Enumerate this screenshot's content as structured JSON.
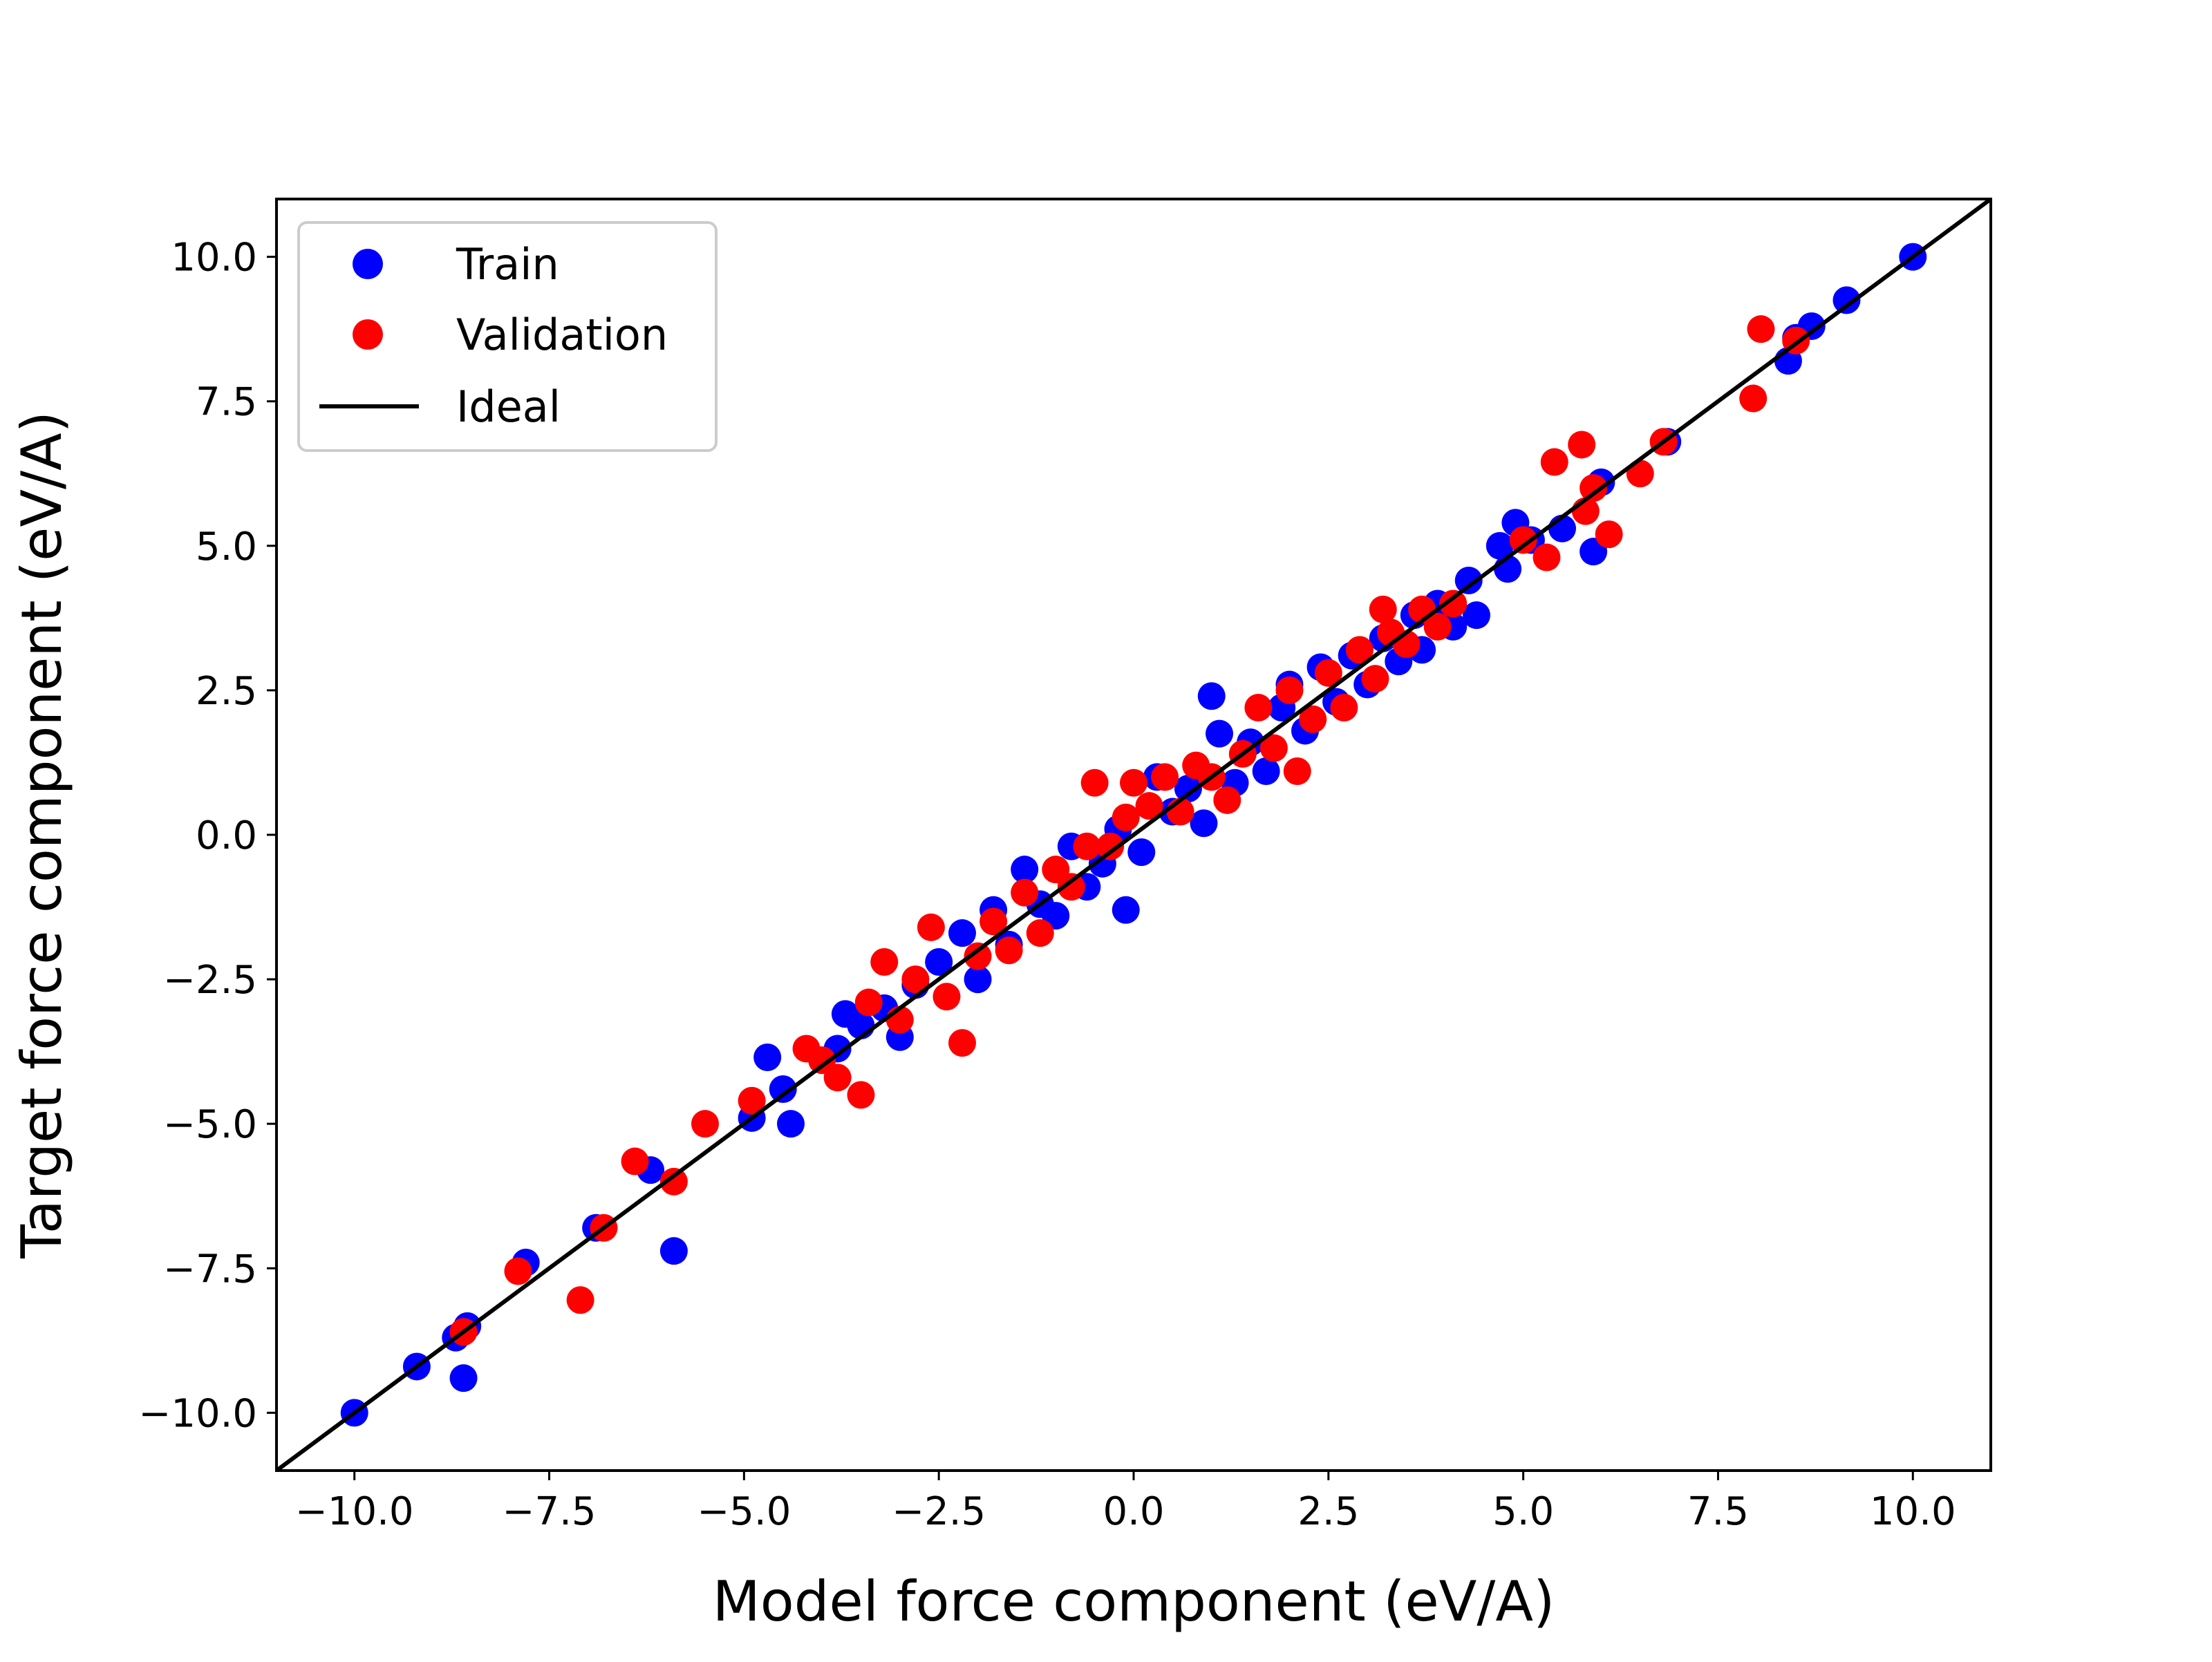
{
  "colors": {
    "train": "#0000ff",
    "validation": "#ff0000",
    "ideal": "#000000",
    "frame": "#000000",
    "legend_border": "#cccccc",
    "background": "#ffffff"
  },
  "chart_data": {
    "type": "scatter",
    "title": "",
    "xlabel": "Model force component (eV/A)",
    "ylabel": "Target force component (eV/A)",
    "xlim": [
      -11,
      11
    ],
    "ylim": [
      -11,
      11
    ],
    "xticks": [
      -10,
      -7.5,
      -5,
      -2.5,
      0,
      2.5,
      5,
      7.5,
      10
    ],
    "yticks": [
      -10,
      -7.5,
      -5,
      -2.5,
      0,
      2.5,
      5,
      7.5,
      10
    ],
    "xtick_labels": [
      "−10.0",
      "−7.5",
      "−5.0",
      "−2.5",
      "0.0",
      "2.5",
      "5.0",
      "7.5",
      "10.0"
    ],
    "ytick_labels": [
      "−10.0",
      "−7.5",
      "−5.0",
      "−2.5",
      "0.0",
      "2.5",
      "5.0",
      "7.5",
      "10.0"
    ],
    "grid": false,
    "legend_position": "top-left",
    "legend": [
      "Train",
      "Validation",
      "Ideal"
    ],
    "series": [
      {
        "name": "Train",
        "color": "#0000ff",
        "points": [
          [
            -10.0,
            -10.0
          ],
          [
            -9.2,
            -9.2
          ],
          [
            -8.7,
            -8.7
          ],
          [
            -8.55,
            -8.5
          ],
          [
            -8.6,
            -9.4
          ],
          [
            -7.8,
            -7.4
          ],
          [
            -6.9,
            -6.8
          ],
          [
            -6.2,
            -5.8
          ],
          [
            -5.9,
            -7.2
          ],
          [
            -4.7,
            -3.85
          ],
          [
            -4.9,
            -4.9
          ],
          [
            -4.4,
            -5.0
          ],
          [
            -4.5,
            -4.4
          ],
          [
            -3.8,
            -3.7
          ],
          [
            -3.7,
            -3.1
          ],
          [
            -3.5,
            -3.3
          ],
          [
            -3.2,
            -3.0
          ],
          [
            -3.0,
            -3.5
          ],
          [
            -2.8,
            -2.6
          ],
          [
            -2.5,
            -2.2
          ],
          [
            -2.2,
            -1.7
          ],
          [
            -2.0,
            -2.5
          ],
          [
            -1.8,
            -1.3
          ],
          [
            -1.6,
            -1.9
          ],
          [
            -1.4,
            -0.6
          ],
          [
            -1.2,
            -1.2
          ],
          [
            -1.0,
            -1.4
          ],
          [
            -0.8,
            -0.2
          ],
          [
            -0.6,
            -0.9
          ],
          [
            -0.4,
            -0.5
          ],
          [
            -0.2,
            0.1
          ],
          [
            -0.1,
            -1.3
          ],
          [
            0.1,
            -0.3
          ],
          [
            0.3,
            1.0
          ],
          [
            0.5,
            0.4
          ],
          [
            0.7,
            0.8
          ],
          [
            0.9,
            0.2
          ],
          [
            1.0,
            2.4
          ],
          [
            1.1,
            1.75
          ],
          [
            1.3,
            0.9
          ],
          [
            1.5,
            1.6
          ],
          [
            1.7,
            1.1
          ],
          [
            1.9,
            2.2
          ],
          [
            2.0,
            2.6
          ],
          [
            2.2,
            1.8
          ],
          [
            2.4,
            2.9
          ],
          [
            2.6,
            2.3
          ],
          [
            2.8,
            3.1
          ],
          [
            3.0,
            2.6
          ],
          [
            3.2,
            3.4
          ],
          [
            3.4,
            3.0
          ],
          [
            3.6,
            3.8
          ],
          [
            3.7,
            3.2
          ],
          [
            3.9,
            4.0
          ],
          [
            4.1,
            3.6
          ],
          [
            4.3,
            4.4
          ],
          [
            4.4,
            3.8
          ],
          [
            4.7,
            5.0
          ],
          [
            4.8,
            4.6
          ],
          [
            4.9,
            5.4
          ],
          [
            5.1,
            5.1
          ],
          [
            5.5,
            5.3
          ],
          [
            5.9,
            4.9
          ],
          [
            6.0,
            6.1
          ],
          [
            6.85,
            6.8
          ],
          [
            8.4,
            8.2
          ],
          [
            8.5,
            8.6
          ],
          [
            8.7,
            8.8
          ],
          [
            9.15,
            9.25
          ],
          [
            10.0,
            10.0
          ]
        ]
      },
      {
        "name": "Validation",
        "color": "#ff0000",
        "points": [
          [
            -8.6,
            -8.6
          ],
          [
            -7.9,
            -7.55
          ],
          [
            -7.1,
            -8.05
          ],
          [
            -6.8,
            -6.8
          ],
          [
            -6.4,
            -5.65
          ],
          [
            -5.9,
            -6.0
          ],
          [
            -5.5,
            -5.0
          ],
          [
            -4.9,
            -4.6
          ],
          [
            -4.2,
            -3.7
          ],
          [
            -4.0,
            -3.9
          ],
          [
            -3.8,
            -4.2
          ],
          [
            -3.5,
            -4.5
          ],
          [
            -3.4,
            -2.9
          ],
          [
            -3.2,
            -2.2
          ],
          [
            -3.0,
            -3.2
          ],
          [
            -2.8,
            -2.5
          ],
          [
            -2.6,
            -1.6
          ],
          [
            -2.4,
            -2.8
          ],
          [
            -2.2,
            -3.6
          ],
          [
            -2.0,
            -2.1
          ],
          [
            -1.8,
            -1.5
          ],
          [
            -1.6,
            -2.0
          ],
          [
            -1.4,
            -1.0
          ],
          [
            -1.2,
            -1.7
          ],
          [
            -1.0,
            -0.6
          ],
          [
            -0.8,
            -0.9
          ],
          [
            -0.6,
            -0.2
          ],
          [
            -0.5,
            0.9
          ],
          [
            -0.3,
            -0.2
          ],
          [
            -0.1,
            0.3
          ],
          [
            0.0,
            0.9
          ],
          [
            0.2,
            0.5
          ],
          [
            0.4,
            1.0
          ],
          [
            0.6,
            0.4
          ],
          [
            0.8,
            1.2
          ],
          [
            1.0,
            1.0
          ],
          [
            1.2,
            0.6
          ],
          [
            1.4,
            1.4
          ],
          [
            1.6,
            2.2
          ],
          [
            1.8,
            1.5
          ],
          [
            2.0,
            2.5
          ],
          [
            2.1,
            1.1
          ],
          [
            2.3,
            2.0
          ],
          [
            2.5,
            2.8
          ],
          [
            2.7,
            2.2
          ],
          [
            2.9,
            3.2
          ],
          [
            3.1,
            2.7
          ],
          [
            3.3,
            3.5
          ],
          [
            3.5,
            3.3
          ],
          [
            3.7,
            3.9
          ],
          [
            3.9,
            3.6
          ],
          [
            4.1,
            4.0
          ],
          [
            3.2,
            3.9
          ],
          [
            5.0,
            5.1
          ],
          [
            5.3,
            4.8
          ],
          [
            5.4,
            6.45
          ],
          [
            5.75,
            6.75
          ],
          [
            5.8,
            5.6
          ],
          [
            5.9,
            6.0
          ],
          [
            6.1,
            5.2
          ],
          [
            6.5,
            6.25
          ],
          [
            6.8,
            6.8
          ],
          [
            7.95,
            7.55
          ],
          [
            8.05,
            8.75
          ],
          [
            8.5,
            8.55
          ]
        ]
      },
      {
        "name": "Ideal",
        "color": "#000000",
        "line": [
          [
            -11,
            -11
          ],
          [
            11,
            11
          ]
        ]
      }
    ]
  }
}
